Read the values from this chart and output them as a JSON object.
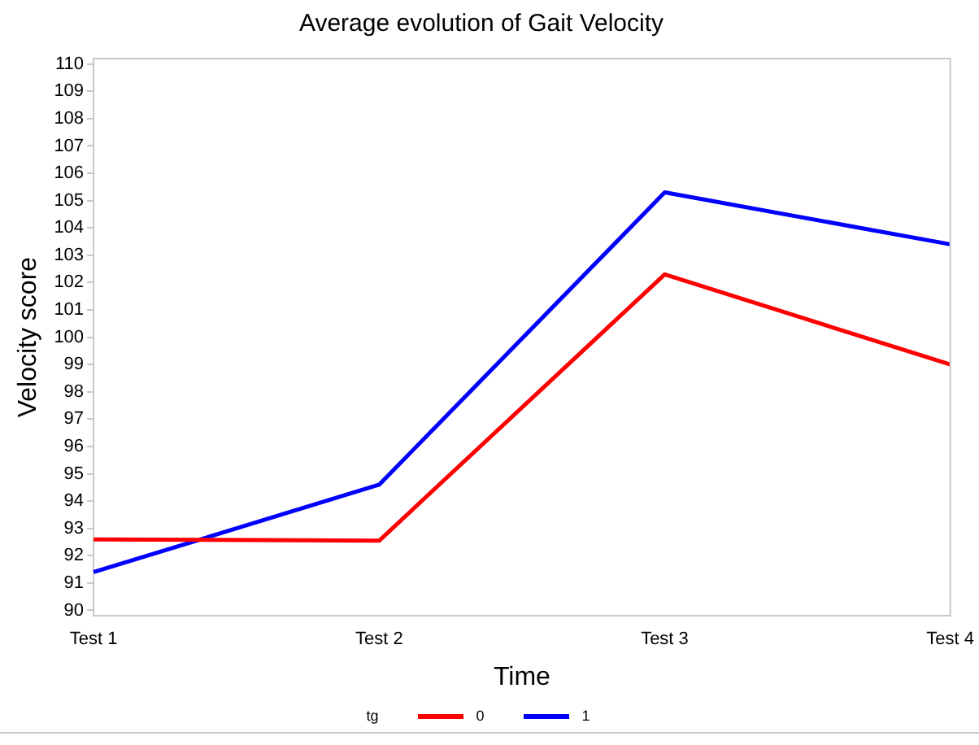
{
  "chart_data": {
    "type": "line",
    "title": "Average evolution of Gait Velocity",
    "xlabel": "Time",
    "ylabel": "Velocity score",
    "legend_title": "tg",
    "categories": [
      "Test 1",
      "Test 2",
      "Test 3",
      "Test 4"
    ],
    "series": [
      {
        "name": "0",
        "color": "#ff0000",
        "values": [
          92.6,
          92.55,
          102.3,
          99.0
        ]
      },
      {
        "name": "1",
        "color": "#0000ff",
        "values": [
          91.4,
          94.6,
          105.3,
          103.4
        ]
      }
    ],
    "ylim": [
      89.8,
      110.2
    ],
    "yticks": [
      90,
      91,
      92,
      93,
      94,
      95,
      96,
      97,
      98,
      99,
      100,
      101,
      102,
      103,
      104,
      105,
      106,
      107,
      108,
      109,
      110
    ],
    "grid": false,
    "legend": "bottom",
    "line_style": "solid"
  }
}
